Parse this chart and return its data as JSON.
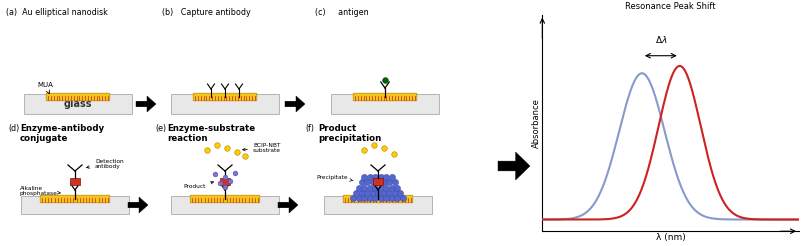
{
  "background_color": "#ffffff",
  "fig_width": 8.07,
  "fig_height": 2.46,
  "glass_color": "#e8e8e8",
  "nanodisk_color": "#f5c518",
  "nanodisk_edge": "#b8860b",
  "mua_color": "#cc2222",
  "antigen_dot_color": "#006600",
  "antigen_box_color": "#cc3322",
  "antigen_box_edge": "#881100",
  "purple_color": "#7777cc",
  "purple_edge": "#4444aa",
  "yellow_circle_color": "#ffcc00",
  "yellow_circle_edge": "#aa8800",
  "blue_precip_color": "#5566cc",
  "blue_precip_edge": "#3344aa",
  "resonance_title": "Resonance Peak Shift",
  "xlabel": "λ (nm)",
  "ylabel": "Absorbance",
  "blue_peak_color": "#8899cc",
  "red_peak_color": "#cc2222",
  "panel_a_label": "(a)  Au elliptical nanodisk",
  "panel_b_label": "(b)   Capture antibody",
  "panel_c_label": "(c)     antigen",
  "panel_d_label": "(d)",
  "panel_d_title1": "Enzyme-antibody",
  "panel_d_title2": "conjugate",
  "panel_e_label": "(e)",
  "panel_e_title1": "Enzyme-substrate",
  "panel_e_title2": "reaction",
  "panel_f_label": "(f)",
  "panel_f_title1": "Product",
  "panel_f_title2": "precipitation",
  "label_alkaline": "Alkaline",
  "label_phosphatase": "phosphatase",
  "label_detection": "Detection",
  "label_antibody": "antibody",
  "label_bcip": "BCIP-NBT",
  "label_substrate": "substrate",
  "label_product": "Product",
  "label_precipitate": "Precipitate",
  "label_glass": "glass",
  "label_mua": "MUA"
}
